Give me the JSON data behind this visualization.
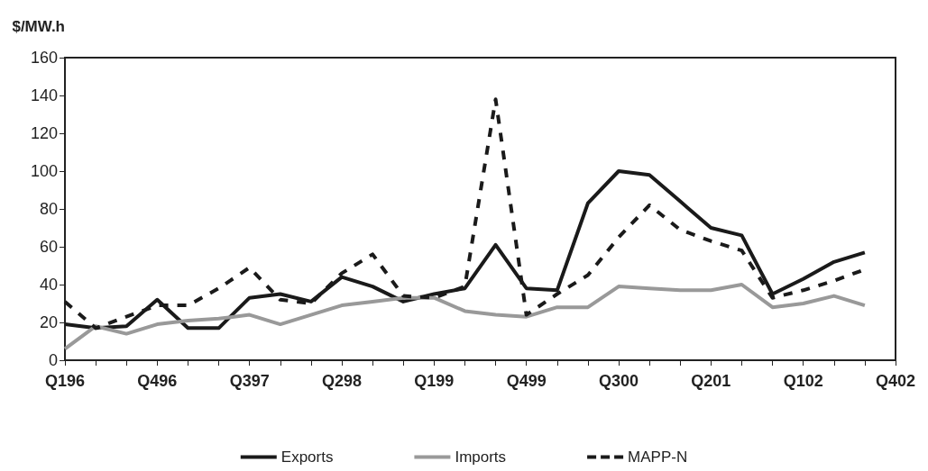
{
  "chart_data": {
    "type": "line",
    "ylabel": "$/MW.h",
    "categories": [
      "Q196",
      null,
      null,
      "Q496",
      null,
      null,
      "Q397",
      null,
      null,
      "Q298",
      null,
      null,
      "Q199",
      null,
      null,
      "Q499",
      null,
      null,
      "Q300",
      null,
      null,
      "Q201",
      null,
      null,
      "Q102",
      null,
      null,
      "Q402"
    ],
    "series": [
      {
        "name": "Exports",
        "color": "#1a1a1a",
        "line_style": "solid",
        "values": [
          19,
          17,
          18,
          32,
          17,
          17,
          33,
          35,
          31,
          44,
          39,
          31,
          35,
          38,
          61,
          38,
          37,
          83,
          100,
          98,
          84,
          70,
          66,
          35,
          43,
          52,
          57,
          null
        ]
      },
      {
        "name": "Imports",
        "color": "#999999",
        "line_style": "solid",
        "values": [
          6,
          18,
          14,
          19,
          21,
          22,
          24,
          19,
          24,
          29,
          31,
          33,
          33,
          26,
          24,
          23,
          28,
          28,
          39,
          38,
          37,
          37,
          40,
          28,
          30,
          34,
          29,
          null
        ]
      },
      {
        "name": "MAPP-N",
        "color": "#1a1a1a",
        "line_style": "dashed",
        "values": [
          31,
          17,
          23,
          29,
          29,
          38,
          49,
          32,
          30,
          46,
          56,
          34,
          33,
          39,
          138,
          24,
          35,
          45,
          65,
          82,
          69,
          63,
          58,
          33,
          37,
          42,
          48,
          null
        ]
      }
    ],
    "ylim": [
      0,
      160
    ],
    "yticks": [
      0,
      20,
      40,
      60,
      80,
      100,
      120,
      140,
      160
    ],
    "grid": false,
    "legend": "bottom",
    "marker": "none"
  }
}
